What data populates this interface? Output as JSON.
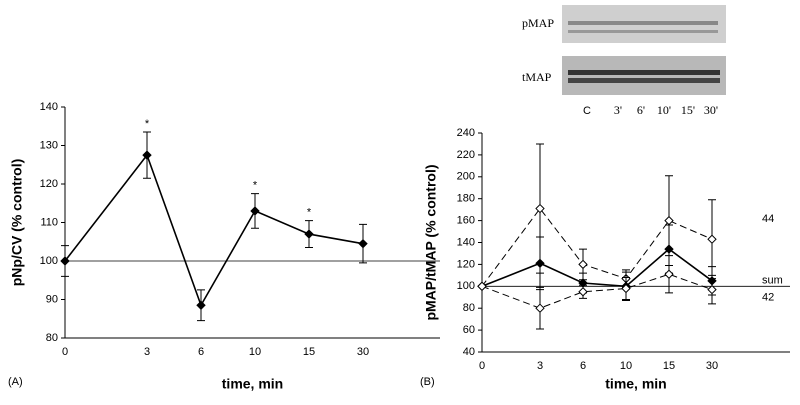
{
  "chart_data": [
    {
      "type": "line",
      "panel_label": "(A)",
      "xlabel": "time, min",
      "ylabel": "pNp/CV (% control)",
      "categories": [
        "0",
        "3",
        "6",
        "10",
        "15",
        "30"
      ],
      "values": [
        100,
        127.5,
        88.5,
        113,
        107,
        104.5
      ],
      "errors": [
        4,
        6,
        4,
        4.5,
        3.5,
        5
      ],
      "markers": [
        null,
        "*",
        null,
        "*",
        "*",
        null
      ],
      "color": "#000000",
      "reference_line": 100,
      "ylim": [
        80,
        140
      ],
      "yticks": [
        80,
        90,
        100,
        110,
        120,
        130,
        140
      ]
    },
    {
      "type": "line",
      "panel_label": "(B)",
      "xlabel": "time, min",
      "ylabel": "pMAP/tMAP (% control)",
      "categories": [
        "0",
        "3",
        "6",
        "10",
        "15",
        "30"
      ],
      "series": [
        {
          "name": "44",
          "color": "#000000",
          "dashed": true,
          "filled": false,
          "values": [
            100,
            171,
            120,
            107,
            160,
            143
          ],
          "errors": [
            0,
            59,
            14,
            8,
            41,
            36
          ]
        },
        {
          "name": "sum",
          "color": "#000000",
          "dashed": false,
          "filled": true,
          "values": [
            100,
            121,
            103,
            100,
            134,
            105
          ],
          "errors": [
            0,
            24,
            9,
            13,
            22,
            13
          ]
        },
        {
          "name": "42",
          "color": "#000000",
          "dashed": true,
          "filled": false,
          "values": [
            100,
            80,
            95,
            98,
            111,
            97
          ],
          "errors": [
            0,
            19,
            6,
            10,
            17,
            13
          ]
        }
      ],
      "reference_line": 100,
      "ylim": [
        40,
        240
      ],
      "yticks": [
        40,
        60,
        80,
        100,
        120,
        140,
        160,
        180,
        200,
        220,
        240
      ],
      "blot": {
        "rows": [
          "pMAP",
          "tMAP"
        ],
        "lanes": [
          "C",
          "3'",
          "6'",
          "10'",
          "15'",
          "30'"
        ]
      }
    }
  ]
}
